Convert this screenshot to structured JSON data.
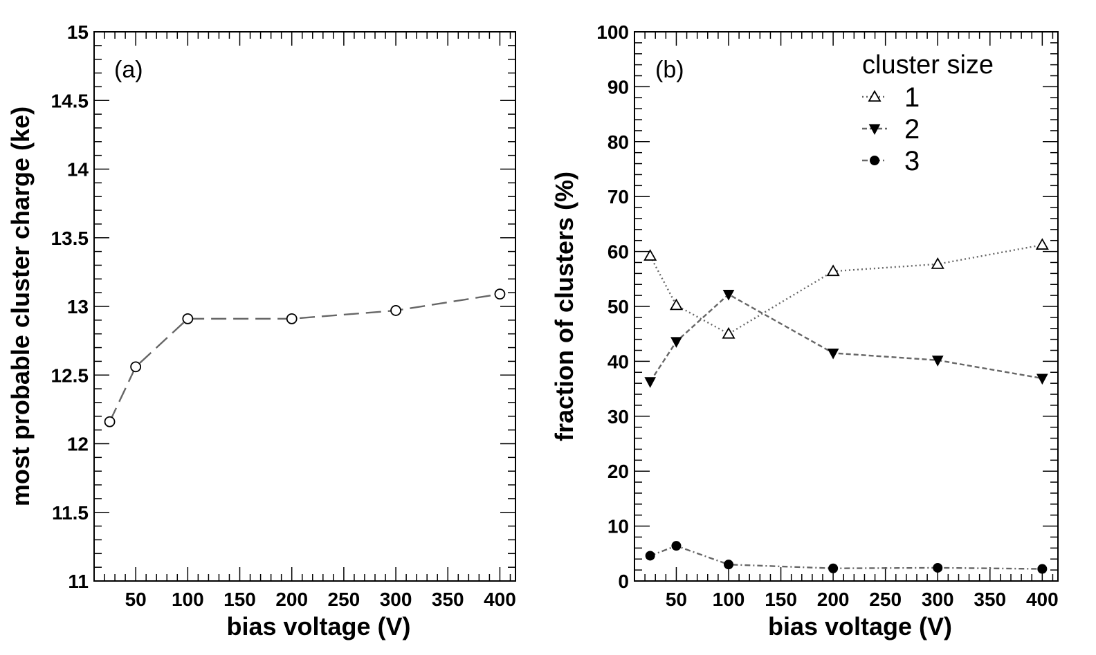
{
  "chart_data": [
    {
      "type": "line",
      "panel_label": "(a)",
      "xlabel": "bias voltage (V)",
      "ylabel": "most probable cluster charge (ke)",
      "xlim": [
        10,
        415
      ],
      "ylim": [
        11,
        15
      ],
      "xticks": [
        50,
        100,
        150,
        200,
        250,
        300,
        350,
        400
      ],
      "xtick_labels": [
        "50",
        "100",
        "150",
        "200",
        "250",
        "300",
        "350",
        "400"
      ],
      "yticks": [
        11,
        11.5,
        12,
        12.5,
        13,
        13.5,
        14,
        14.5,
        15
      ],
      "ytick_labels": [
        "11",
        "11.5",
        "12",
        "12.5",
        "13",
        "13.5",
        "14",
        "14.5",
        "15"
      ],
      "grid": false,
      "series": [
        {
          "x": [
            25,
            50,
            100,
            200,
            300,
            400
          ],
          "y": [
            12.16,
            12.56,
            12.91,
            12.91,
            12.97,
            13.09
          ],
          "marker": "open-circle",
          "line_style": "long-dash",
          "color": "#666666"
        }
      ]
    },
    {
      "type": "line",
      "panel_label": "(b)",
      "xlabel": "bias voltage (V)",
      "ylabel": "fraction of clusters (%)",
      "xlim": [
        10,
        415
      ],
      "ylim": [
        0,
        100
      ],
      "xticks": [
        50,
        100,
        150,
        200,
        250,
        300,
        350,
        400
      ],
      "xtick_labels": [
        "50",
        "100",
        "150",
        "200",
        "250",
        "300",
        "350",
        "400"
      ],
      "yticks": [
        0,
        10,
        20,
        30,
        40,
        50,
        60,
        70,
        80,
        90,
        100
      ],
      "ytick_labels": [
        "0",
        "10",
        "20",
        "30",
        "40",
        "50",
        "60",
        "70",
        "80",
        "90",
        "100"
      ],
      "grid": false,
      "legend": {
        "title": "cluster size",
        "placement": "top-right"
      },
      "series": [
        {
          "name": "1",
          "x": [
            25,
            50,
            100,
            200,
            300,
            400
          ],
          "y": [
            59.2,
            50.2,
            45.0,
            56.4,
            57.7,
            61.2
          ],
          "marker": "open-triangle-up",
          "line_style": "dotted",
          "color": "#666666"
        },
        {
          "name": "2",
          "x": [
            25,
            50,
            100,
            200,
            300,
            400
          ],
          "y": [
            36.3,
            43.6,
            52.2,
            41.5,
            40.2,
            36.9
          ],
          "marker": "filled-triangle-down",
          "line_style": "dashed",
          "color": "#666666"
        },
        {
          "name": "3",
          "x": [
            25,
            50,
            100,
            200,
            300,
            400
          ],
          "y": [
            4.6,
            6.4,
            3.0,
            2.3,
            2.4,
            2.2
          ],
          "marker": "filled-circle",
          "line_style": "dash-dot",
          "color": "#666666"
        }
      ]
    }
  ]
}
